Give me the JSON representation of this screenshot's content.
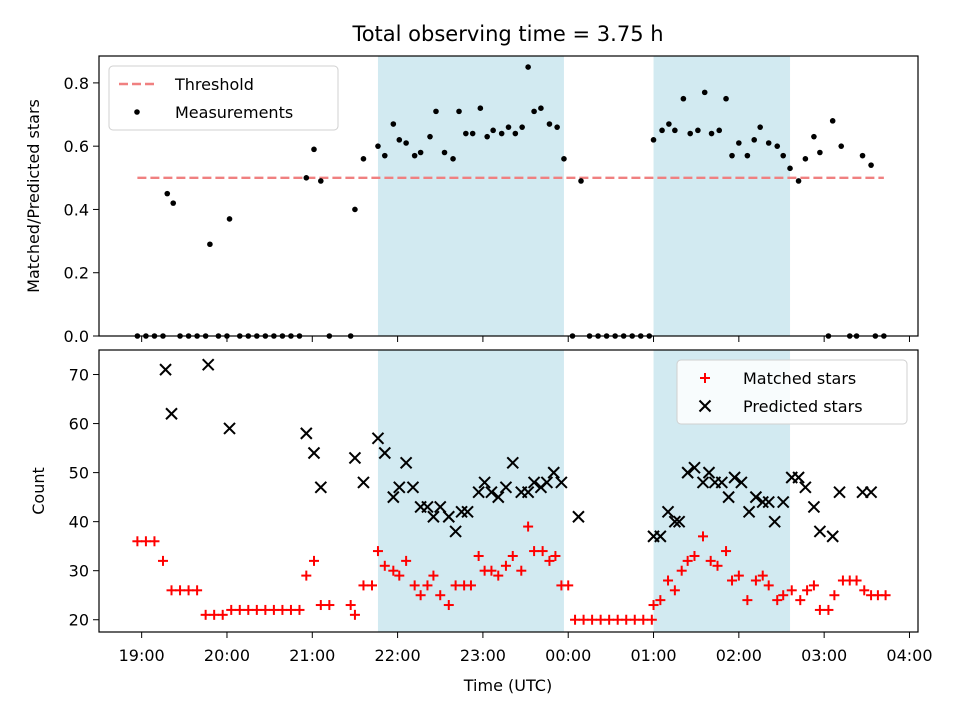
{
  "chart_data": {
    "type": "scatter",
    "title": "Total observing time = 3.75 h",
    "xlabel": "Time (UTC)",
    "x_unit_note": "hours after 19:00 UTC on the shared time axis",
    "xlim": [
      -0.5,
      9.1
    ],
    "x_ticks": [
      0,
      1,
      2,
      3,
      4,
      5,
      6,
      7,
      8,
      9
    ],
    "x_tick_labels": [
      "19:00",
      "20:00",
      "21:00",
      "22:00",
      "23:00",
      "00:00",
      "01:00",
      "02:00",
      "03:00",
      "04:00"
    ],
    "shaded_windows": [
      [
        2.77,
        4.95
      ],
      [
        6.0,
        7.6
      ]
    ],
    "colors": {
      "shade": "#add8e6",
      "threshold": "#f08080",
      "matched": "#ff0000",
      "predicted": "#000000",
      "measurements": "#000000"
    },
    "panels": [
      {
        "id": "ratio",
        "ylabel": "Matched/Predicted stars",
        "ylim": [
          0,
          0.885
        ],
        "y_ticks": [
          0.0,
          0.2,
          0.4,
          0.6,
          0.8
        ],
        "y_tick_labels": [
          "0.0",
          "0.2",
          "0.4",
          "0.6",
          "0.8"
        ],
        "legend_position": "upper-left",
        "legend": [
          {
            "label": "Threshold",
            "kind": "dashed-line",
            "color": "#f08080"
          },
          {
            "label": "Measurements",
            "kind": "dot",
            "color": "#000000"
          }
        ],
        "threshold": {
          "value": 0.5,
          "x_start": -0.05,
          "x_end": 8.7
        },
        "measurements": [
          [
            -0.05,
            0
          ],
          [
            0.05,
            0
          ],
          [
            0.15,
            0
          ],
          [
            0.25,
            0
          ],
          [
            0.3,
            0.45
          ],
          [
            0.37,
            0.42
          ],
          [
            0.45,
            0
          ],
          [
            0.55,
            0
          ],
          [
            0.65,
            0
          ],
          [
            0.75,
            0
          ],
          [
            0.8,
            0.29
          ],
          [
            0.9,
            0
          ],
          [
            1.0,
            0
          ],
          [
            1.03,
            0.37
          ],
          [
            1.15,
            0
          ],
          [
            1.25,
            0
          ],
          [
            1.35,
            0
          ],
          [
            1.45,
            0
          ],
          [
            1.55,
            0
          ],
          [
            1.65,
            0
          ],
          [
            1.75,
            0
          ],
          [
            1.85,
            0
          ],
          [
            1.93,
            0.5
          ],
          [
            2.02,
            0.59
          ],
          [
            2.1,
            0.49
          ],
          [
            2.2,
            0
          ],
          [
            2.45,
            0
          ],
          [
            2.5,
            0.4
          ],
          [
            2.6,
            0.56
          ],
          [
            2.77,
            0.6
          ],
          [
            2.85,
            0.57
          ],
          [
            2.95,
            0.67
          ],
          [
            3.02,
            0.62
          ],
          [
            3.1,
            0.61
          ],
          [
            3.2,
            0.57
          ],
          [
            3.27,
            0.58
          ],
          [
            3.38,
            0.63
          ],
          [
            3.45,
            0.71
          ],
          [
            3.55,
            0.58
          ],
          [
            3.65,
            0.56
          ],
          [
            3.72,
            0.71
          ],
          [
            3.8,
            0.64
          ],
          [
            3.88,
            0.64
          ],
          [
            3.97,
            0.72
          ],
          [
            4.05,
            0.63
          ],
          [
            4.12,
            0.65
          ],
          [
            4.22,
            0.64
          ],
          [
            4.3,
            0.66
          ],
          [
            4.38,
            0.64
          ],
          [
            4.46,
            0.66
          ],
          [
            4.53,
            0.85
          ],
          [
            4.6,
            0.71
          ],
          [
            4.68,
            0.72
          ],
          [
            4.78,
            0.67
          ],
          [
            4.87,
            0.66
          ],
          [
            4.95,
            0.56
          ],
          [
            5.05,
            0
          ],
          [
            5.15,
            0.49
          ],
          [
            5.25,
            0
          ],
          [
            5.35,
            0
          ],
          [
            5.45,
            0
          ],
          [
            5.55,
            0
          ],
          [
            5.65,
            0
          ],
          [
            5.75,
            0
          ],
          [
            5.85,
            0
          ],
          [
            5.95,
            0
          ],
          [
            6.0,
            0.62
          ],
          [
            6.1,
            0.65
          ],
          [
            6.18,
            0.67
          ],
          [
            6.25,
            0.65
          ],
          [
            6.35,
            0.75
          ],
          [
            6.43,
            0.64
          ],
          [
            6.52,
            0.65
          ],
          [
            6.6,
            0.77
          ],
          [
            6.68,
            0.64
          ],
          [
            6.77,
            0.65
          ],
          [
            6.85,
            0.75
          ],
          [
            6.92,
            0.57
          ],
          [
            7.0,
            0.61
          ],
          [
            7.1,
            0.57
          ],
          [
            7.18,
            0.62
          ],
          [
            7.25,
            0.66
          ],
          [
            7.35,
            0.61
          ],
          [
            7.45,
            0.6
          ],
          [
            7.52,
            0.57
          ],
          [
            7.6,
            0.53
          ],
          [
            7.7,
            0.49
          ],
          [
            7.78,
            0.56
          ],
          [
            7.88,
            0.63
          ],
          [
            7.95,
            0.58
          ],
          [
            8.05,
            0
          ],
          [
            8.1,
            0.68
          ],
          [
            8.2,
            0.6
          ],
          [
            8.3,
            0
          ],
          [
            8.38,
            0
          ],
          [
            8.45,
            0.57
          ],
          [
            8.55,
            0.54
          ],
          [
            8.6,
            0
          ],
          [
            8.7,
            0
          ]
        ]
      },
      {
        "id": "count",
        "ylabel": "Count",
        "ylim": [
          17.5,
          75
        ],
        "y_ticks": [
          20,
          30,
          40,
          50,
          60,
          70
        ],
        "y_tick_labels": [
          "20",
          "30",
          "40",
          "50",
          "60",
          "70"
        ],
        "legend_position": "upper-right",
        "legend": [
          {
            "label": "Matched stars",
            "kind": "plus",
            "color": "#ff0000"
          },
          {
            "label": "Predicted stars",
            "kind": "x",
            "color": "#000000"
          }
        ],
        "matched": [
          [
            -0.05,
            36
          ],
          [
            0.05,
            36
          ],
          [
            0.15,
            36
          ],
          [
            0.25,
            32
          ],
          [
            0.35,
            26
          ],
          [
            0.45,
            26
          ],
          [
            0.55,
            26
          ],
          [
            0.65,
            26
          ],
          [
            0.75,
            21
          ],
          [
            0.85,
            21
          ],
          [
            0.95,
            21
          ],
          [
            1.05,
            22
          ],
          [
            1.15,
            22
          ],
          [
            1.25,
            22
          ],
          [
            1.35,
            22
          ],
          [
            1.45,
            22
          ],
          [
            1.55,
            22
          ],
          [
            1.65,
            22
          ],
          [
            1.75,
            22
          ],
          [
            1.85,
            22
          ],
          [
            1.93,
            29
          ],
          [
            2.02,
            32
          ],
          [
            2.1,
            23
          ],
          [
            2.2,
            23
          ],
          [
            2.45,
            23
          ],
          [
            2.5,
            21
          ],
          [
            2.6,
            27
          ],
          [
            2.7,
            27
          ],
          [
            2.77,
            34
          ],
          [
            2.85,
            31
          ],
          [
            2.95,
            30
          ],
          [
            3.02,
            29
          ],
          [
            3.1,
            32
          ],
          [
            3.2,
            27
          ],
          [
            3.27,
            25
          ],
          [
            3.35,
            27
          ],
          [
            3.42,
            29
          ],
          [
            3.5,
            25
          ],
          [
            3.6,
            23
          ],
          [
            3.68,
            27
          ],
          [
            3.78,
            27
          ],
          [
            3.86,
            27
          ],
          [
            3.95,
            33
          ],
          [
            4.02,
            30
          ],
          [
            4.1,
            30
          ],
          [
            4.18,
            29
          ],
          [
            4.27,
            31
          ],
          [
            4.35,
            33
          ],
          [
            4.45,
            30
          ],
          [
            4.53,
            39
          ],
          [
            4.6,
            34
          ],
          [
            4.7,
            34
          ],
          [
            4.78,
            32
          ],
          [
            4.85,
            33
          ],
          [
            4.92,
            27
          ],
          [
            5.0,
            27
          ],
          [
            5.08,
            20
          ],
          [
            5.18,
            20
          ],
          [
            5.28,
            20
          ],
          [
            5.38,
            20
          ],
          [
            5.48,
            20
          ],
          [
            5.58,
            20
          ],
          [
            5.68,
            20
          ],
          [
            5.78,
            20
          ],
          [
            5.88,
            20
          ],
          [
            5.98,
            20
          ],
          [
            6.0,
            23
          ],
          [
            6.08,
            24
          ],
          [
            6.17,
            28
          ],
          [
            6.25,
            26
          ],
          [
            6.33,
            30
          ],
          [
            6.4,
            32
          ],
          [
            6.48,
            33
          ],
          [
            6.58,
            37
          ],
          [
            6.67,
            32
          ],
          [
            6.75,
            31
          ],
          [
            6.85,
            34
          ],
          [
            6.92,
            28
          ],
          [
            7.0,
            29
          ],
          [
            7.1,
            24
          ],
          [
            7.2,
            28
          ],
          [
            7.28,
            29
          ],
          [
            7.35,
            27
          ],
          [
            7.45,
            24
          ],
          [
            7.52,
            25
          ],
          [
            7.62,
            26
          ],
          [
            7.72,
            24
          ],
          [
            7.8,
            26
          ],
          [
            7.88,
            27
          ],
          [
            7.95,
            22
          ],
          [
            8.05,
            22
          ],
          [
            8.12,
            25
          ],
          [
            8.22,
            28
          ],
          [
            8.3,
            28
          ],
          [
            8.38,
            28
          ],
          [
            8.47,
            26
          ],
          [
            8.55,
            25
          ],
          [
            8.63,
            25
          ],
          [
            8.72,
            25
          ]
        ],
        "predicted": [
          [
            0.28,
            71
          ],
          [
            0.35,
            62
          ],
          [
            0.78,
            72
          ],
          [
            1.03,
            59
          ],
          [
            1.93,
            58
          ],
          [
            2.02,
            54
          ],
          [
            2.1,
            47
          ],
          [
            2.5,
            53
          ],
          [
            2.6,
            48
          ],
          [
            2.77,
            57
          ],
          [
            2.85,
            54
          ],
          [
            2.95,
            45
          ],
          [
            3.02,
            47
          ],
          [
            3.1,
            52
          ],
          [
            3.18,
            47
          ],
          [
            3.27,
            43
          ],
          [
            3.35,
            43
          ],
          [
            3.42,
            41
          ],
          [
            3.5,
            43
          ],
          [
            3.6,
            41
          ],
          [
            3.68,
            38
          ],
          [
            3.75,
            42
          ],
          [
            3.82,
            42
          ],
          [
            3.95,
            46
          ],
          [
            4.02,
            48
          ],
          [
            4.1,
            46
          ],
          [
            4.18,
            45
          ],
          [
            4.27,
            47
          ],
          [
            4.35,
            52
          ],
          [
            4.45,
            46
          ],
          [
            4.53,
            46
          ],
          [
            4.6,
            48
          ],
          [
            4.68,
            47
          ],
          [
            4.75,
            48
          ],
          [
            4.83,
            50
          ],
          [
            4.92,
            48
          ],
          [
            5.12,
            41
          ],
          [
            6.0,
            37
          ],
          [
            6.08,
            37
          ],
          [
            6.17,
            42
          ],
          [
            6.25,
            40
          ],
          [
            6.3,
            40
          ],
          [
            6.4,
            50
          ],
          [
            6.48,
            51
          ],
          [
            6.58,
            48
          ],
          [
            6.65,
            50
          ],
          [
            6.72,
            48
          ],
          [
            6.8,
            48
          ],
          [
            6.88,
            45
          ],
          [
            6.95,
            49
          ],
          [
            7.03,
            48
          ],
          [
            7.12,
            42
          ],
          [
            7.2,
            45
          ],
          [
            7.28,
            44
          ],
          [
            7.35,
            44
          ],
          [
            7.42,
            40
          ],
          [
            7.52,
            44
          ],
          [
            7.62,
            49
          ],
          [
            7.7,
            49
          ],
          [
            7.78,
            47
          ],
          [
            7.88,
            43
          ],
          [
            7.95,
            38
          ],
          [
            8.1,
            37
          ],
          [
            8.18,
            46
          ],
          [
            8.45,
            46
          ],
          [
            8.55,
            46
          ]
        ]
      }
    ]
  }
}
